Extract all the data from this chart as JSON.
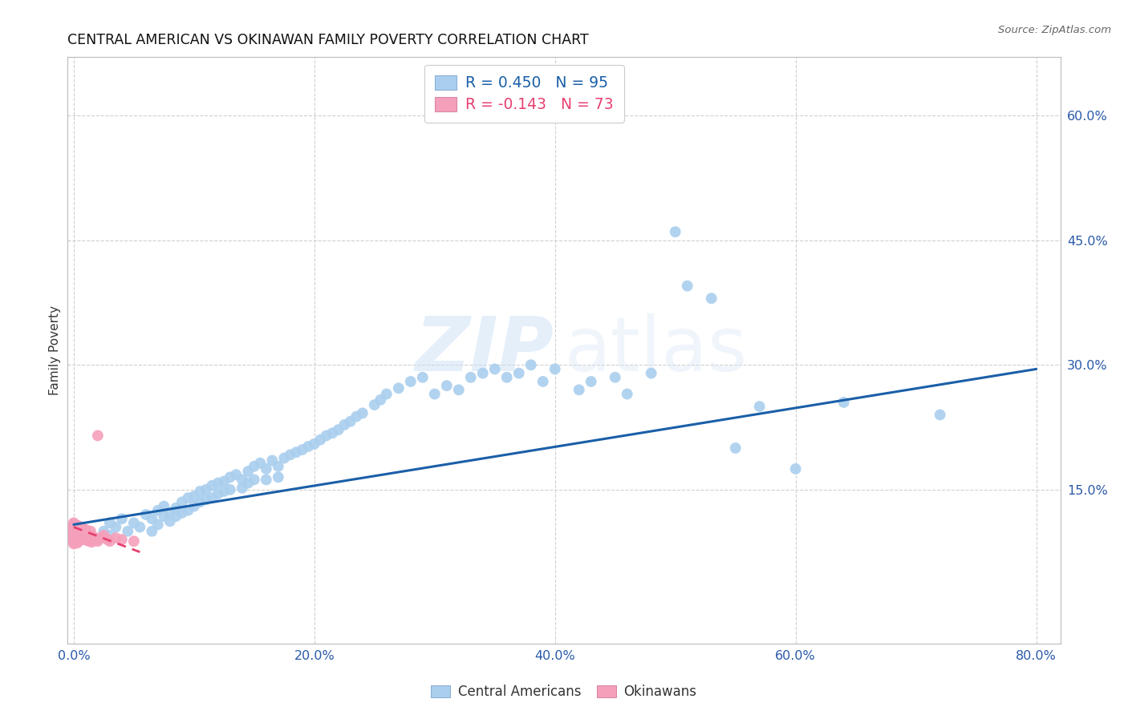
{
  "title": "CENTRAL AMERICAN VS OKINAWAN FAMILY POVERTY CORRELATION CHART",
  "source": "Source: ZipAtlas.com",
  "xlabel_ticks": [
    "0.0%",
    "20.0%",
    "40.0%",
    "60.0%",
    "80.0%"
  ],
  "xlabel_tick_vals": [
    0.0,
    0.2,
    0.4,
    0.6,
    0.8
  ],
  "ylabel": "Family Poverty",
  "ylabel_ticks": [
    "15.0%",
    "30.0%",
    "45.0%",
    "60.0%"
  ],
  "ylabel_tick_vals": [
    0.15,
    0.3,
    0.45,
    0.6
  ],
  "xlim": [
    -0.005,
    0.82
  ],
  "ylim": [
    -0.035,
    0.67
  ],
  "blue_R": "0.450",
  "blue_N": "95",
  "pink_R": "-0.143",
  "pink_N": "73",
  "blue_color": "#aacfee",
  "pink_color": "#f5a0bb",
  "blue_line_color": "#1a5fa8",
  "pink_line_color": "#e84070",
  "grid_color": "#d0d0d0",
  "background_color": "#ffffff",
  "watermark_zip": "ZIP",
  "watermark_atlas": "atlas",
  "legend_label_blue": "Central Americans",
  "legend_label_pink": "Okinawans",
  "blue_scatter_x": [
    0.02,
    0.025,
    0.03,
    0.03,
    0.035,
    0.04,
    0.045,
    0.05,
    0.055,
    0.06,
    0.065,
    0.065,
    0.07,
    0.07,
    0.075,
    0.075,
    0.08,
    0.08,
    0.085,
    0.085,
    0.09,
    0.09,
    0.095,
    0.095,
    0.1,
    0.1,
    0.105,
    0.105,
    0.11,
    0.11,
    0.115,
    0.115,
    0.12,
    0.12,
    0.125,
    0.125,
    0.13,
    0.13,
    0.135,
    0.14,
    0.14,
    0.145,
    0.145,
    0.15,
    0.15,
    0.155,
    0.16,
    0.16,
    0.165,
    0.17,
    0.17,
    0.175,
    0.18,
    0.185,
    0.19,
    0.195,
    0.2,
    0.205,
    0.21,
    0.215,
    0.22,
    0.225,
    0.23,
    0.235,
    0.24,
    0.25,
    0.255,
    0.26,
    0.27,
    0.28,
    0.29,
    0.3,
    0.31,
    0.32,
    0.33,
    0.34,
    0.35,
    0.36,
    0.37,
    0.38,
    0.39,
    0.4,
    0.42,
    0.43,
    0.45,
    0.46,
    0.48,
    0.5,
    0.51,
    0.53,
    0.55,
    0.57,
    0.6,
    0.64,
    0.72
  ],
  "blue_scatter_y": [
    0.09,
    0.1,
    0.11,
    0.095,
    0.105,
    0.115,
    0.1,
    0.11,
    0.105,
    0.12,
    0.115,
    0.1,
    0.125,
    0.108,
    0.118,
    0.13,
    0.122,
    0.112,
    0.128,
    0.118,
    0.135,
    0.122,
    0.14,
    0.125,
    0.142,
    0.13,
    0.148,
    0.135,
    0.15,
    0.138,
    0.155,
    0.14,
    0.158,
    0.145,
    0.16,
    0.148,
    0.165,
    0.15,
    0.168,
    0.162,
    0.152,
    0.172,
    0.158,
    0.178,
    0.162,
    0.182,
    0.175,
    0.162,
    0.185,
    0.178,
    0.165,
    0.188,
    0.192,
    0.195,
    0.198,
    0.202,
    0.205,
    0.21,
    0.215,
    0.218,
    0.222,
    0.228,
    0.232,
    0.238,
    0.242,
    0.252,
    0.258,
    0.265,
    0.272,
    0.28,
    0.285,
    0.265,
    0.275,
    0.27,
    0.285,
    0.29,
    0.295,
    0.285,
    0.29,
    0.3,
    0.28,
    0.295,
    0.27,
    0.28,
    0.285,
    0.265,
    0.29,
    0.46,
    0.395,
    0.38,
    0.2,
    0.25,
    0.175,
    0.255,
    0.24
  ],
  "pink_scatter_x": [
    0.0,
    0.0,
    0.0,
    0.0,
    0.0,
    0.0,
    0.0,
    0.0,
    0.0,
    0.0,
    0.0,
    0.0,
    0.0,
    0.0,
    0.0,
    0.0,
    0.0,
    0.0,
    0.0,
    0.0,
    0.002,
    0.002,
    0.002,
    0.002,
    0.002,
    0.003,
    0.003,
    0.003,
    0.003,
    0.003,
    0.004,
    0.004,
    0.004,
    0.004,
    0.005,
    0.005,
    0.005,
    0.005,
    0.006,
    0.006,
    0.006,
    0.007,
    0.007,
    0.007,
    0.008,
    0.008,
    0.008,
    0.009,
    0.009,
    0.01,
    0.01,
    0.01,
    0.011,
    0.011,
    0.012,
    0.012,
    0.013,
    0.013,
    0.014,
    0.014,
    0.015,
    0.015,
    0.016,
    0.018,
    0.02,
    0.02,
    0.022,
    0.025,
    0.028,
    0.03,
    0.035,
    0.04,
    0.05
  ],
  "pink_scatter_y": [
    0.085,
    0.09,
    0.095,
    0.1,
    0.105,
    0.11,
    0.088,
    0.093,
    0.098,
    0.103,
    0.108,
    0.092,
    0.087,
    0.097,
    0.102,
    0.107,
    0.091,
    0.096,
    0.101,
    0.106,
    0.09,
    0.095,
    0.1,
    0.088,
    0.105,
    0.092,
    0.097,
    0.102,
    0.086,
    0.107,
    0.093,
    0.098,
    0.103,
    0.088,
    0.094,
    0.099,
    0.104,
    0.089,
    0.095,
    0.1,
    0.105,
    0.091,
    0.096,
    0.101,
    0.093,
    0.098,
    0.103,
    0.09,
    0.095,
    0.092,
    0.097,
    0.102,
    0.089,
    0.094,
    0.091,
    0.096,
    0.093,
    0.088,
    0.095,
    0.1,
    0.092,
    0.087,
    0.094,
    0.09,
    0.088,
    0.215,
    0.092,
    0.095,
    0.09,
    0.088,
    0.092,
    0.09,
    0.088
  ],
  "blue_line_x": [
    0.0,
    0.8
  ],
  "blue_line_y": [
    0.108,
    0.295
  ],
  "pink_line_x": [
    0.0,
    0.055
  ],
  "pink_line_y": [
    0.105,
    0.075
  ]
}
